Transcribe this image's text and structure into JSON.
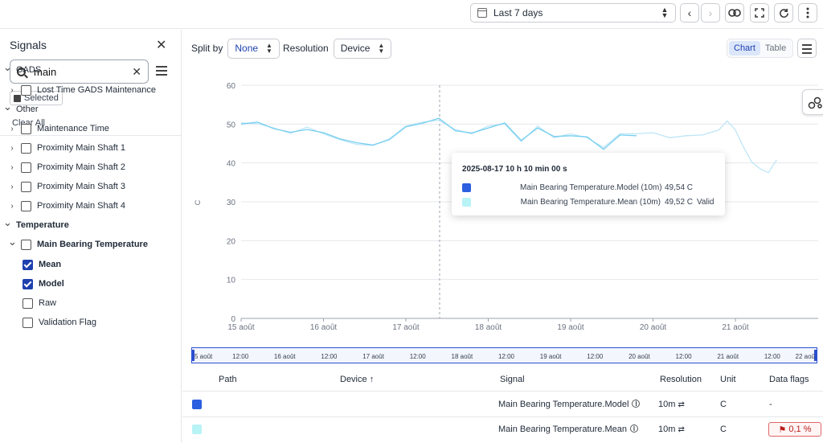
{
  "topbar": {
    "range_label": "Last 7 days"
  },
  "sidebar": {
    "title": "Signals",
    "search_value": "main",
    "chip_label": "Selected",
    "clear_all": "Clear All",
    "tree": [
      {
        "label": "GADS",
        "level": 0,
        "bold": false,
        "checkbox": false,
        "caret": "v"
      },
      {
        "label": "Lost Time GADS Maintenance",
        "level": 1,
        "bold": false,
        "checkbox": true,
        "checked": false,
        "caret": ">"
      },
      {
        "label": "Other",
        "level": 0,
        "bold": false,
        "checkbox": false,
        "caret": "v"
      },
      {
        "label": "Maintenance Time",
        "level": 1,
        "bold": false,
        "checkbox": true,
        "checked": false,
        "caret": ">"
      },
      {
        "label": "Proximity Main Shaft 1",
        "level": 1,
        "bold": false,
        "checkbox": true,
        "checked": false,
        "caret": ">"
      },
      {
        "label": "Proximity Main Shaft 2",
        "level": 1,
        "bold": false,
        "checkbox": true,
        "checked": false,
        "caret": ">"
      },
      {
        "label": "Proximity Main Shaft 3",
        "level": 1,
        "bold": false,
        "checkbox": true,
        "checked": false,
        "caret": ">"
      },
      {
        "label": "Proximity Main Shaft 4",
        "level": 1,
        "bold": false,
        "checkbox": true,
        "checked": false,
        "caret": ">"
      },
      {
        "label": "Temperature",
        "level": 0,
        "bold": true,
        "checkbox": false,
        "caret": "v"
      },
      {
        "label": "Main Bearing Temperature",
        "level": 1,
        "bold": true,
        "checkbox": true,
        "checked": false,
        "caret": "v"
      },
      {
        "label": "Mean",
        "level": 2,
        "bold": true,
        "checkbox": true,
        "checked": true,
        "caret": ""
      },
      {
        "label": "Model",
        "level": 2,
        "bold": true,
        "checkbox": true,
        "checked": true,
        "caret": ""
      },
      {
        "label": "Raw",
        "level": 2,
        "bold": false,
        "checkbox": true,
        "checked": false,
        "caret": ""
      },
      {
        "label": "Validation Flag",
        "level": 2,
        "bold": false,
        "checkbox": true,
        "checked": false,
        "caret": ""
      }
    ]
  },
  "controls": {
    "split_label": "Split by",
    "split_value": "None",
    "resolution_label": "Resolution",
    "resolution_value": "Device",
    "view_chart": "Chart",
    "view_table": "Table"
  },
  "chart_data": {
    "type": "line",
    "ylabel": "C",
    "ylim": [
      0,
      60
    ],
    "yticks": [
      0,
      10,
      20,
      30,
      40,
      50,
      60
    ],
    "x_ticks": [
      "15 août",
      "16 août",
      "17 août",
      "18 août",
      "19 août",
      "20 août",
      "21 août"
    ],
    "x_range_days": [
      15,
      21.6
    ],
    "grid": true,
    "series": [
      {
        "name": "Main Bearing Temperature.Model (10m)",
        "color": "#bfe6f7",
        "x": [
          15.0,
          15.2,
          15.4,
          15.6,
          15.8,
          16.0,
          16.2,
          16.4,
          16.6,
          16.8,
          17.0,
          17.2,
          17.4,
          17.6,
          17.8,
          18.0,
          18.2,
          18.4,
          18.6,
          18.8,
          19.0,
          19.2,
          19.4,
          19.6,
          19.8,
          20.0,
          20.2,
          20.4,
          20.6,
          20.8,
          20.9,
          21.0,
          21.1,
          21.2,
          21.3,
          21.4,
          21.5
        ],
        "values": [
          50.3,
          50.1,
          49.0,
          47.6,
          49.2,
          47.5,
          46.0,
          44.8,
          44.5,
          46.2,
          49.5,
          50.5,
          51.0,
          48.6,
          47.5,
          49.5,
          50.0,
          45.5,
          49.5,
          46.5,
          47.5,
          46.5,
          44.0,
          47.5,
          47.5,
          47.8,
          46.5,
          47.0,
          47.2,
          48.5,
          50.8,
          48.5,
          44.0,
          40.2,
          38.5,
          37.5,
          40.8
        ]
      },
      {
        "name": "Main Bearing Temperature.Mean (10m)",
        "color": "#76cff0",
        "x": [
          15.0,
          15.2,
          15.4,
          15.6,
          15.8,
          16.0,
          16.2,
          16.4,
          16.6,
          16.8,
          17.0,
          17.2,
          17.4,
          17.6,
          17.8,
          18.0,
          18.2,
          18.4,
          18.6,
          18.8,
          19.0,
          19.2,
          19.4,
          19.6,
          19.8
        ],
        "values": [
          50.0,
          50.5,
          48.8,
          47.9,
          48.6,
          47.8,
          46.2,
          45.2,
          44.6,
          46.0,
          49.3,
          50.2,
          51.5,
          48.3,
          47.7,
          49.0,
          50.3,
          45.8,
          49.0,
          46.8,
          47.0,
          46.7,
          43.5,
          47.2,
          47.0
        ]
      }
    ],
    "navigator_ticks": [
      "5 août",
      "12:00",
      "16 août",
      "12:00",
      "17 août",
      "12:00",
      "18 août",
      "12:00",
      "19 août",
      "12:00",
      "20 août",
      "12:00",
      "21 août",
      "12:00",
      "22 aoû"
    ]
  },
  "tooltip": {
    "title": "2025-08-17 10 h 10 min 00 s",
    "lines": [
      {
        "color": "#2b5fe0",
        "name": "Main Bearing Temperature.Model (10m)",
        "value": "49,54 C",
        "flag": ""
      },
      {
        "color": "#b8f3f6",
        "name": "Main Bearing Temperature.Mean (10m)",
        "value": "49,52 C",
        "flag": "Valid"
      }
    ]
  },
  "table": {
    "headers": {
      "path": "Path",
      "device": "Device",
      "signal": "Signal",
      "resolution": "Resolution",
      "unit": "Unit",
      "flags": "Data flags"
    },
    "rows": [
      {
        "color": "#2b5fe0",
        "signal": "Main Bearing Temperature.Model",
        "resolution": "10m",
        "unit": "C",
        "flags": "-"
      },
      {
        "color": "#b8f3f6",
        "signal": "Main Bearing Temperature.Mean",
        "resolution": "10m",
        "unit": "C",
        "flags": "0,1 %"
      }
    ]
  }
}
